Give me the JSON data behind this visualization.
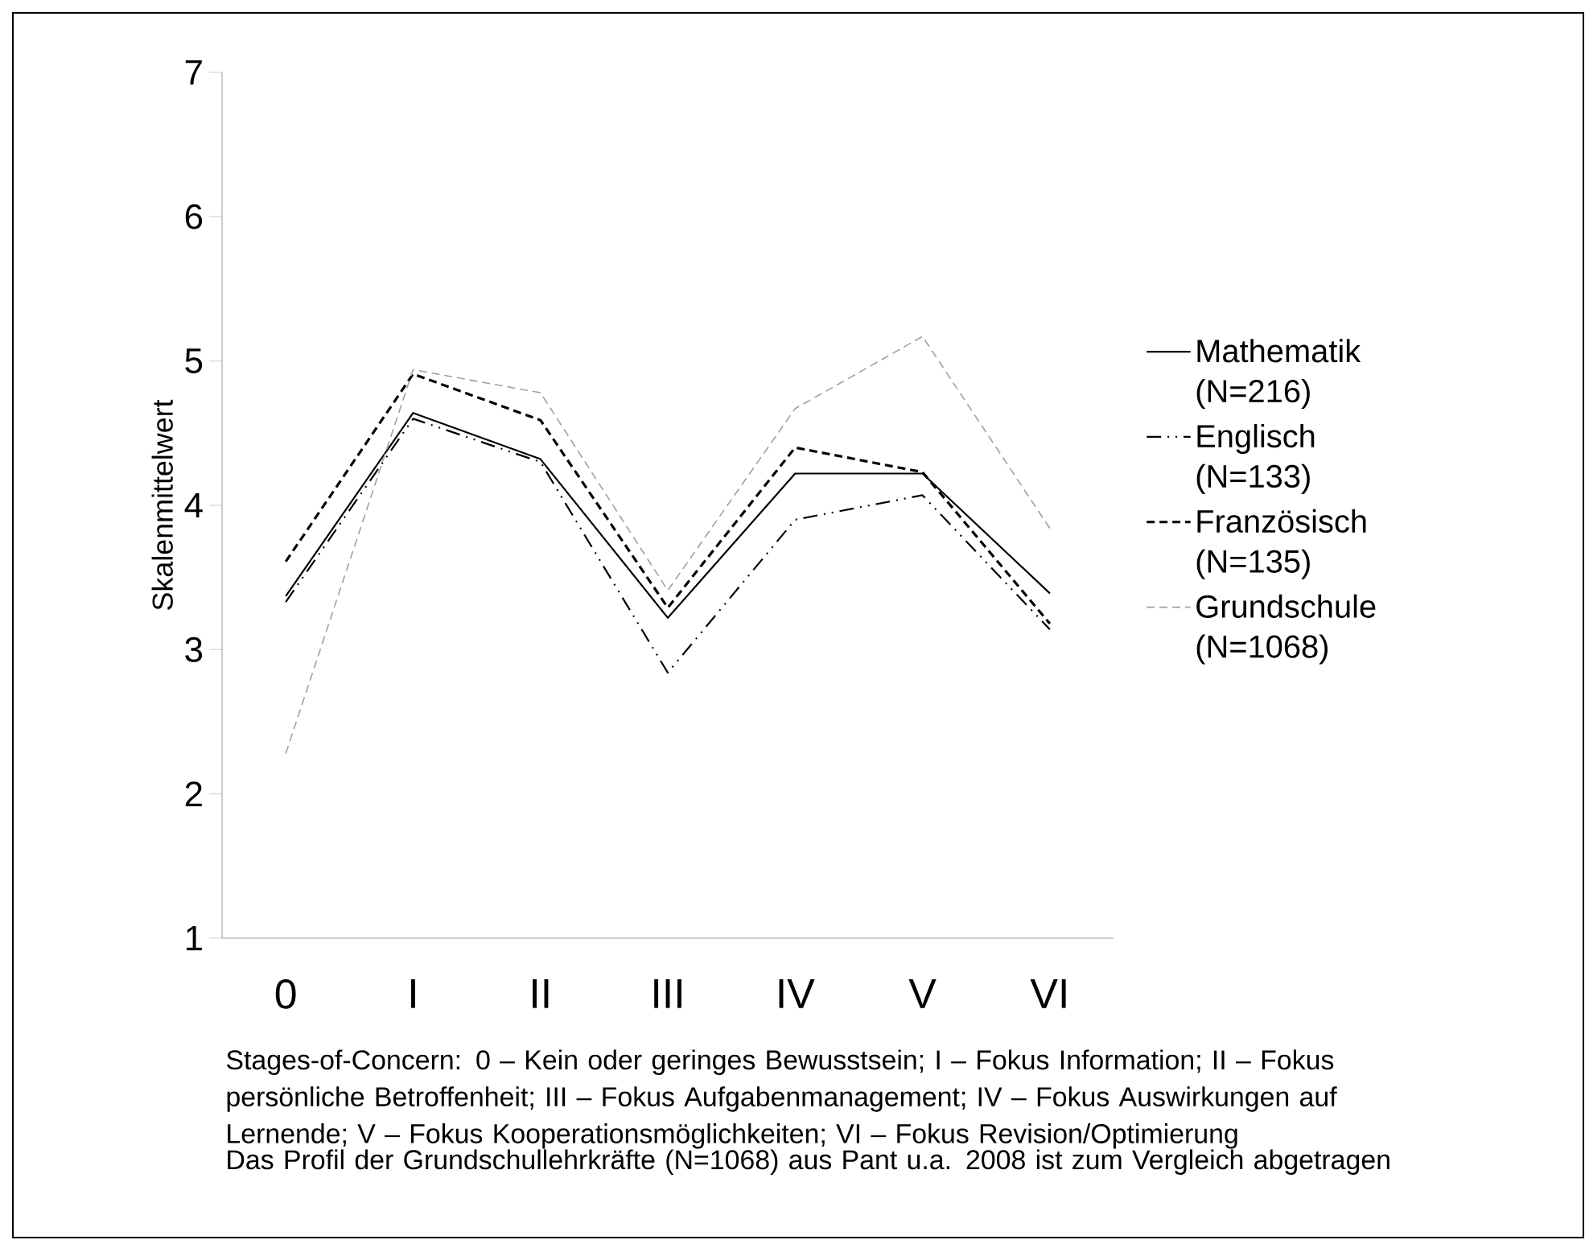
{
  "chart_data": {
    "type": "line",
    "ylabel": "Skalenmittelwert",
    "categories": [
      "0",
      "I",
      "II",
      "III",
      "IV",
      "V",
      "VI"
    ],
    "series": [
      {
        "name": "Mathematik (N=216)",
        "color": "#000000",
        "line_style": "solid",
        "values": [
          3.37,
          4.64,
          4.32,
          3.22,
          4.22,
          4.22,
          3.39
        ]
      },
      {
        "name": "Englisch (N=133)",
        "color": "#000000",
        "line_style": "dashdot",
        "values": [
          3.33,
          4.6,
          4.3,
          2.84,
          3.9,
          4.07,
          3.14
        ]
      },
      {
        "name": "Französisch (N=135)",
        "color": "#000000",
        "line_style": "dashed",
        "values": [
          3.61,
          4.91,
          4.59,
          3.29,
          4.4,
          4.23,
          3.18
        ]
      },
      {
        "name": "Grundschule (N=1068)",
        "color": "#a0a0a0",
        "line_style": "dashed",
        "values": [
          2.28,
          4.94,
          4.78,
          3.41,
          4.67,
          5.17,
          3.84
        ]
      }
    ],
    "ylim": [
      1,
      7
    ],
    "yticks": [
      1,
      2,
      3,
      4,
      5,
      6,
      7
    ],
    "grid": false,
    "legend": "right",
    "marker": "none",
    "annotations": [
      "Stages-of-Concern: 0 – Kein oder geringes Bewusstsein; I – Fokus Information; II – Fokus persönliche Betroffenheit; III – Fokus Aufgabenmanagement; IV – Fokus Auswirkungen auf Lernende; V – Fokus Kooperationsmöglichkeiten; VI – Fokus Revision/Optimierung",
      "Das Profil der Grundschullehrkräfte (N=1068) aus Pant u.a. 2008 ist zum Vergleich abgetragen"
    ]
  }
}
